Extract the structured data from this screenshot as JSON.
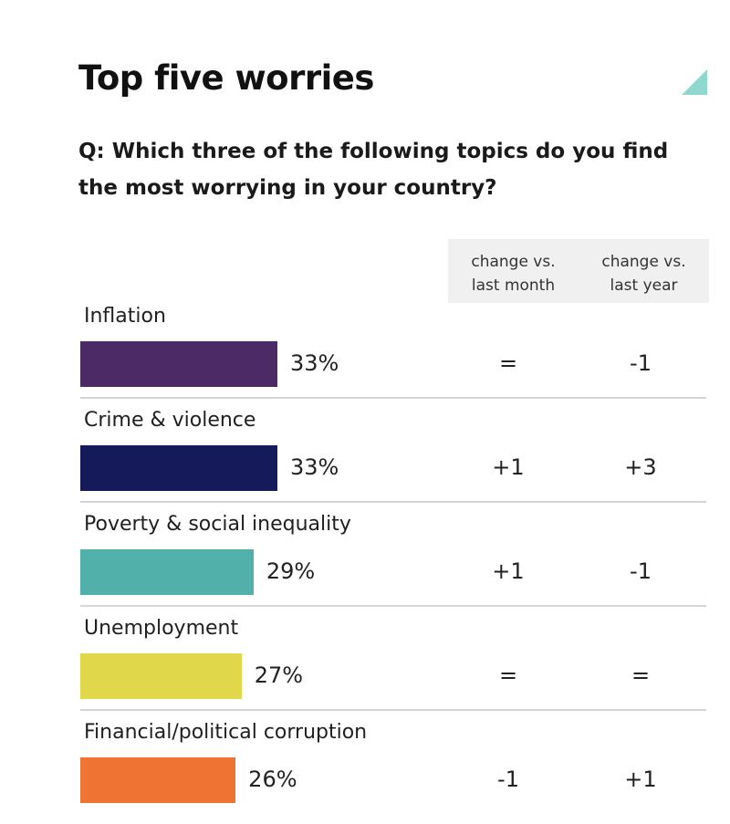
{
  "title": "Top five worries",
  "question": "Q: Which three of the following topics do you find the most worrying in your country?",
  "columns": {
    "month": "change vs.\nlast month",
    "year": "change vs.\nlast year"
  },
  "colors": {
    "accent_mark": "#8ed8cf"
  },
  "chart_data": {
    "type": "bar",
    "orientation": "horizontal",
    "title": "Top five worries",
    "categories": [
      "Inflation",
      "Crime & violence",
      "Poverty & social inequality",
      "Unemployment",
      "Financial/political corruption"
    ],
    "values": [
      33,
      33,
      29,
      27,
      26
    ],
    "value_labels": [
      "33%",
      "33%",
      "29%",
      "27%",
      "26%"
    ],
    "bar_colors": [
      "#4b2a66",
      "#141a5a",
      "#52b0aa",
      "#e0d84a",
      "#ef7434"
    ],
    "change_vs_last_month": [
      "=",
      "+1",
      "+1",
      "=",
      "-1"
    ],
    "change_vs_last_year": [
      "-1",
      "+3",
      "-1",
      "=",
      "+1"
    ],
    "legend": false,
    "grid": false
  }
}
